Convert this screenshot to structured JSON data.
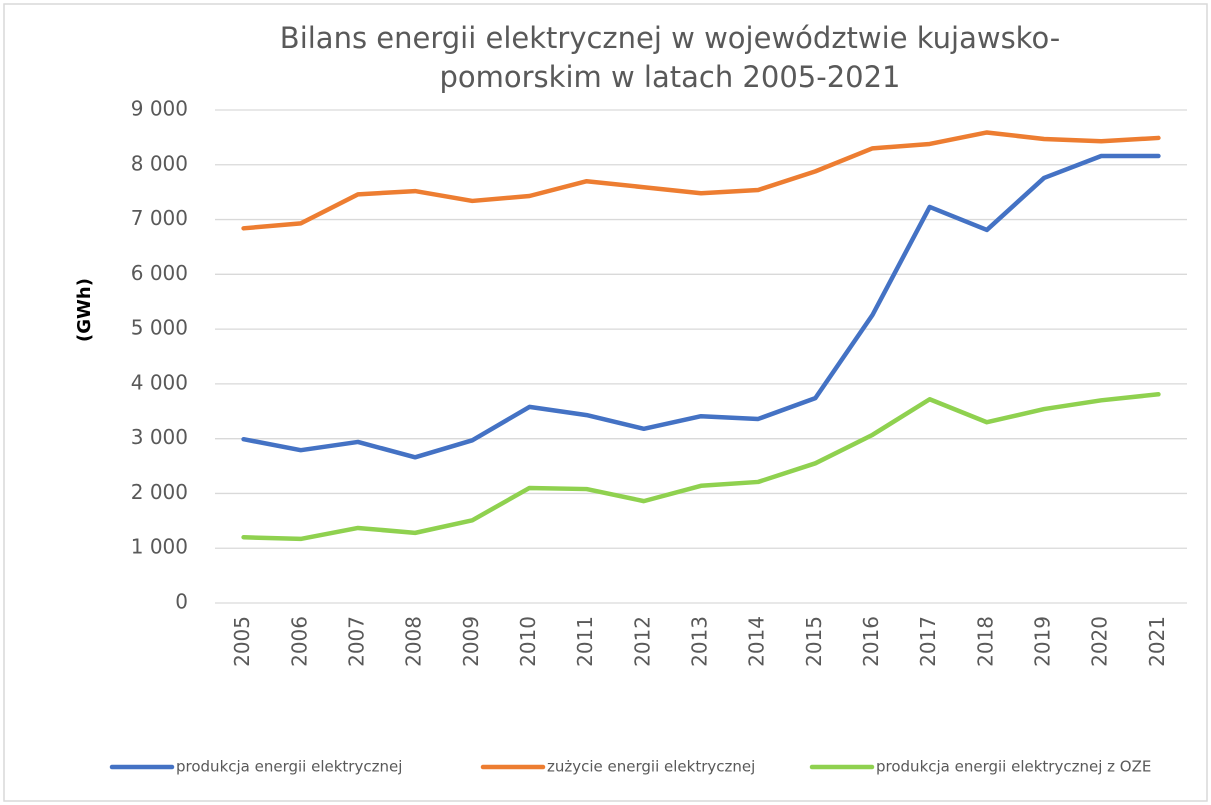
{
  "chart_data": {
    "type": "line",
    "title": [
      "Bilans energii elektrycznej w województwie kujawsko-",
      "pomorskim w latach 2005-2021"
    ],
    "y_label": "(GWh)",
    "categories": [
      "2005",
      "2006",
      "2007",
      "2008",
      "2009",
      "2010",
      "2011",
      "2012",
      "2013",
      "2014",
      "2015",
      "2016",
      "2017",
      "2018",
      "2019",
      "2020",
      "2021"
    ],
    "series": [
      {
        "name": "produkcja energii elektrycznej",
        "color": "#4472c4",
        "values": [
          2990,
          2790,
          2940,
          2660,
          2970,
          3580,
          3430,
          3180,
          3410,
          3360,
          3740,
          5260,
          7230,
          6810,
          7760,
          8160,
          8160
        ]
      },
      {
        "name": "zużycie energii elektrycznej",
        "color": "#ed7d31",
        "values": [
          6840,
          6930,
          7460,
          7520,
          7340,
          7430,
          7700,
          7590,
          7480,
          7540,
          7880,
          8300,
          8380,
          8590,
          8470,
          8430,
          8490
        ]
      },
      {
        "name": "produkcja energii elektrycznej z OZE",
        "color": "#8fd14f",
        "values": [
          1200,
          1170,
          1370,
          1280,
          1510,
          2100,
          2080,
          1860,
          2140,
          2210,
          2550,
          3070,
          3720,
          3300,
          3540,
          3700,
          3810
        ]
      }
    ],
    "ylim": [
      0,
      9000
    ],
    "yticks": [
      0,
      {
        "value": 1000,
        "label": "1 000"
      },
      {
        "value": 2000,
        "label": "2 000"
      },
      {
        "value": 3000,
        "label": "3 000"
      },
      {
        "value": 4000,
        "label": "4 000"
      },
      {
        "value": 5000,
        "label": "5 000"
      },
      {
        "value": 6000,
        "label": "6 000"
      },
      {
        "value": 7000,
        "label": "7 000"
      },
      {
        "value": 8000,
        "label": "8 000"
      },
      {
        "value": 9000,
        "label": "9 000"
      }
    ],
    "grid": true,
    "legend": "bottom"
  }
}
